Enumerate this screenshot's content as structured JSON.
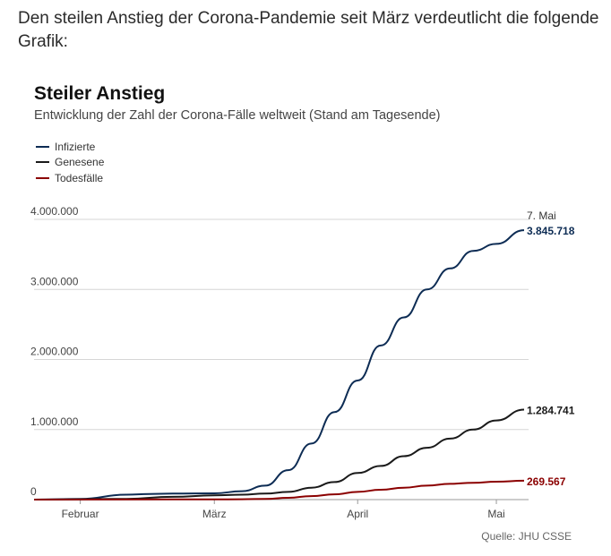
{
  "intro_text": "Den steilen Anstieg der Corona-Pandemie seit März verdeutlicht die folgende Grafik:",
  "source": "Quelle: JHU CSSE",
  "chart_data": {
    "type": "line",
    "title": "Steiler Anstieg",
    "subtitle": "Entwicklung der Zahl der Corona-Fälle weltweit (Stand am Tagesende)",
    "xlabel": "",
    "ylabel": "",
    "ylim": [
      0,
      4000000
    ],
    "grid": true,
    "legend_position": "top-left",
    "x_start": "22.01.",
    "x_end": "07.05.",
    "x_ticks": [
      {
        "label": "Februar",
        "day": 10
      },
      {
        "label": "März",
        "day": 39
      },
      {
        "label": "April",
        "day": 70
      },
      {
        "label": "Mai",
        "day": 100
      }
    ],
    "y_ticks": [
      {
        "label": "0",
        "value": 0
      },
      {
        "label": "1.000.000",
        "value": 1000000
      },
      {
        "label": "2.000.000",
        "value": 2000000
      },
      {
        "label": "3.000.000",
        "value": 3000000
      },
      {
        "label": "4.000.000",
        "value": 4000000
      }
    ],
    "end_date_label": "7. Mai",
    "series": [
      {
        "name": "Infizierte",
        "color": "#0d2c54",
        "end_label": "3.845.718",
        "days": [
          0,
          10,
          20,
          25,
          30,
          39,
          45,
          50,
          55,
          60,
          65,
          70,
          75,
          80,
          85,
          90,
          95,
          100,
          106
        ],
        "values": [
          0,
          10000,
          70000,
          80000,
          85000,
          90000,
          120000,
          200000,
          420000,
          800000,
          1250000,
          1700000,
          2200000,
          2600000,
          3000000,
          3300000,
          3550000,
          3650000,
          3845718
        ]
      },
      {
        "name": "Genesene",
        "color": "#1a1a1a",
        "end_label": "1.284.741",
        "days": [
          0,
          20,
          30,
          39,
          45,
          50,
          55,
          60,
          65,
          70,
          75,
          80,
          85,
          90,
          95,
          100,
          106
        ],
        "values": [
          0,
          10000,
          40000,
          60000,
          70000,
          85000,
          110000,
          170000,
          250000,
          380000,
          480000,
          620000,
          740000,
          870000,
          1000000,
          1130000,
          1284741
        ]
      },
      {
        "name": "Todesfälle",
        "color": "#8b0000",
        "end_label": "269.567",
        "days": [
          0,
          30,
          39,
          45,
          50,
          55,
          60,
          65,
          70,
          75,
          80,
          85,
          90,
          95,
          100,
          106
        ],
        "values": [
          0,
          2000,
          3000,
          5000,
          10000,
          25000,
          50000,
          75000,
          110000,
          140000,
          170000,
          200000,
          225000,
          240000,
          255000,
          269567
        ]
      }
    ]
  }
}
